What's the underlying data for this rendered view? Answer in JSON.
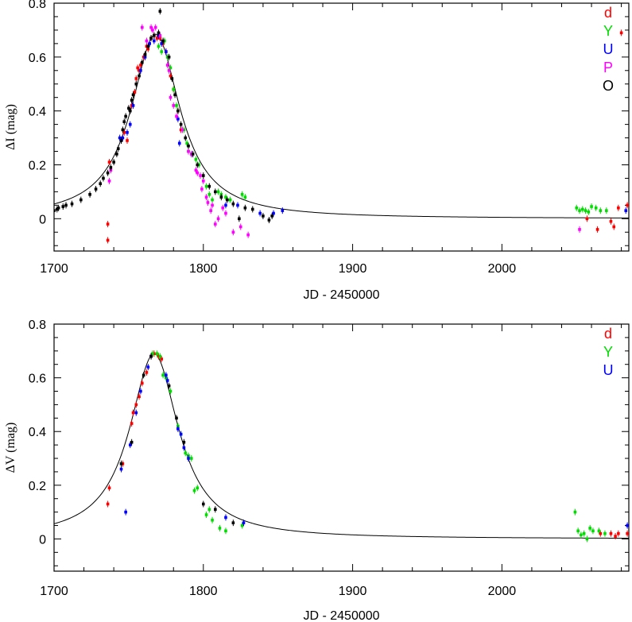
{
  "colors": {
    "d": "#ff0000",
    "Y": "#00dd00",
    "U": "#0000ff",
    "P": "#ff00ff",
    "O": "#000000"
  },
  "chart_data": [
    {
      "type": "scatter",
      "xlabel": "JD - 2450000",
      "ylabel": "ΔI (mag)",
      "xlim": [
        1700,
        2085
      ],
      "ylim": [
        -0.12,
        0.8
      ],
      "xticks": [
        "1700",
        "1800",
        "1900",
        "2000"
      ],
      "yticks": [
        "0",
        "0.2",
        "0.4",
        "0.6",
        "0.8"
      ],
      "legend_placement": "top-right",
      "legend": [
        "d",
        "Y",
        "U",
        "P",
        "O"
      ],
      "model": {
        "t0": 1768,
        "amp": 0.685,
        "tau": 20
      },
      "series": [
        {
          "name": "d",
          "points": [
            [
              1736,
              -0.02
            ],
            [
              1736,
              -0.08
            ],
            [
              1737,
              0.21
            ],
            [
              1747,
              0.32
            ],
            [
              1749,
              0.29
            ],
            [
              1752,
              0.42
            ],
            [
              1754,
              0.47
            ],
            [
              1755,
              0.52
            ],
            [
              1756,
              0.56
            ],
            [
              1757,
              0.55
            ],
            [
              1758,
              0.57
            ],
            [
              1760,
              0.6
            ],
            [
              1762,
              0.64
            ],
            [
              1763,
              0.63
            ],
            [
              1765,
              0.67
            ],
            [
              1767,
              0.68
            ],
            [
              1769,
              0.67
            ],
            [
              1771,
              0.67
            ],
            [
              1773,
              0.65
            ],
            [
              1775,
              0.62
            ],
            [
              1778,
              0.53
            ],
            [
              1780,
              0.48
            ],
            [
              1783,
              0.4
            ],
            [
              1785,
              0.33
            ],
            [
              2057,
              0.0
            ],
            [
              2064,
              -0.04
            ],
            [
              2073,
              -0.01
            ],
            [
              2075,
              -0.03
            ],
            [
              2078,
              0.04
            ],
            [
              2080,
              0.69
            ],
            [
              2084,
              0.05
            ]
          ]
        },
        {
          "name": "Y",
          "points": [
            [
              1770,
              0.64
            ],
            [
              1772,
              0.62
            ],
            [
              1774,
              0.66
            ],
            [
              1776,
              0.6
            ],
            [
              1778,
              0.56
            ],
            [
              1780,
              0.48
            ],
            [
              1782,
              0.42
            ],
            [
              1787,
              0.33
            ],
            [
              1789,
              0.28
            ],
            [
              1790,
              0.25
            ],
            [
              1795,
              0.22
            ],
            [
              1797,
              0.2
            ],
            [
              1802,
              0.12
            ],
            [
              1804,
              0.09
            ],
            [
              1806,
              0.07
            ],
            [
              1810,
              0.1
            ],
            [
              1812,
              0.09
            ],
            [
              1815,
              0.08
            ],
            [
              1818,
              0.07
            ],
            [
              1826,
              0.09
            ],
            [
              1828,
              0.08
            ],
            [
              2050,
              0.04
            ],
            [
              2052,
              0.03
            ],
            [
              2054,
              0.035
            ],
            [
              2056,
              0.03
            ],
            [
              2058,
              0.025
            ],
            [
              2060,
              0.045
            ],
            [
              2063,
              0.04
            ],
            [
              2066,
              0.03
            ],
            [
              2070,
              0.03
            ]
          ]
        },
        {
          "name": "U",
          "points": [
            [
              1744,
              0.3
            ],
            [
              1745,
              0.29
            ],
            [
              1746,
              0.3
            ],
            [
              1749,
              0.32
            ],
            [
              1751,
              0.35
            ],
            [
              1753,
              0.42
            ],
            [
              1758,
              0.55
            ],
            [
              1761,
              0.6
            ],
            [
              1764,
              0.65
            ],
            [
              1767,
              0.66
            ],
            [
              1770,
              0.68
            ],
            [
              1772,
              0.65
            ],
            [
              1775,
              0.62
            ],
            [
              1783,
              0.37
            ],
            [
              1784,
              0.28
            ],
            [
              1792,
              0.24
            ],
            [
              1815,
              0.05
            ],
            [
              1823,
              0.05
            ],
            [
              1838,
              0.02
            ],
            [
              1847,
              0.02
            ],
            [
              1853,
              0.03
            ],
            [
              2083,
              0.03
            ]
          ]
        },
        {
          "name": "P",
          "points": [
            [
              1737,
              0.14
            ],
            [
              1738,
              0.18
            ],
            [
              1759,
              0.71
            ],
            [
              1762,
              0.66
            ],
            [
              1765,
              0.71
            ],
            [
              1766,
              0.7
            ],
            [
              1768,
              0.71
            ],
            [
              1771,
              0.68
            ],
            [
              1776,
              0.57
            ],
            [
              1777,
              0.55
            ],
            [
              1778,
              0.45
            ],
            [
              1780,
              0.42
            ],
            [
              1782,
              0.38
            ],
            [
              1786,
              0.33
            ],
            [
              1790,
              0.25
            ],
            [
              1792,
              0.24
            ],
            [
              1795,
              0.18
            ],
            [
              1796,
              0.17
            ],
            [
              1798,
              0.16
            ],
            [
              1799,
              0.11
            ],
            [
              1800,
              0.14
            ],
            [
              1802,
              0.08
            ],
            [
              1803,
              0.06
            ],
            [
              1805,
              0.03
            ],
            [
              1806,
              0.05
            ],
            [
              1808,
              -0.02
            ],
            [
              1810,
              0.0
            ],
            [
              1813,
              0.04
            ],
            [
              1815,
              0.02
            ],
            [
              1820,
              -0.05
            ],
            [
              1825,
              -0.03
            ],
            [
              1830,
              -0.06
            ],
            [
              2052,
              -0.04
            ]
          ]
        },
        {
          "name": "O",
          "points": [
            [
              1700,
              0.03
            ],
            [
              1702,
              0.035
            ],
            [
              1703,
              0.04
            ],
            [
              1706,
              0.045
            ],
            [
              1708,
              0.05
            ],
            [
              1712,
              0.055
            ],
            [
              1718,
              0.07
            ],
            [
              1724,
              0.09
            ],
            [
              1728,
              0.11
            ],
            [
              1731,
              0.13
            ],
            [
              1733,
              0.15
            ],
            [
              1736,
              0.17
            ],
            [
              1738,
              0.19
            ],
            [
              1740,
              0.21
            ],
            [
              1742,
              0.24
            ],
            [
              1743,
              0.26
            ],
            [
              1745,
              0.29
            ],
            [
              1746,
              0.33
            ],
            [
              1747,
              0.36
            ],
            [
              1748,
              0.38
            ],
            [
              1750,
              0.41
            ],
            [
              1751,
              0.4
            ],
            [
              1752,
              0.44
            ],
            [
              1753,
              0.46
            ],
            [
              1755,
              0.5
            ],
            [
              1757,
              0.53
            ],
            [
              1759,
              0.58
            ],
            [
              1761,
              0.61
            ],
            [
              1763,
              0.64
            ],
            [
              1765,
              0.67
            ],
            [
              1767,
              0.68
            ],
            [
              1770,
              0.69
            ],
            [
              1771,
              0.77
            ],
            [
              1773,
              0.66
            ],
            [
              1777,
              0.6
            ],
            [
              1779,
              0.52
            ],
            [
              1781,
              0.46
            ],
            [
              1783,
              0.4
            ],
            [
              1785,
              0.35
            ],
            [
              1788,
              0.3
            ],
            [
              1790,
              0.27
            ],
            [
              1793,
              0.24
            ],
            [
              1796,
              0.2
            ],
            [
              1800,
              0.16
            ],
            [
              1804,
              0.12
            ],
            [
              1808,
              0.1
            ],
            [
              1812,
              0.08
            ],
            [
              1816,
              0.07
            ],
            [
              1820,
              0.055
            ],
            [
              1824,
              0.0
            ],
            [
              1828,
              0.04
            ],
            [
              1833,
              0.035
            ],
            [
              1840,
              0.01
            ],
            [
              1844,
              -0.005
            ],
            [
              1846,
              0.01
            ]
          ]
        }
      ]
    },
    {
      "type": "scatter",
      "xlabel": "JD - 2450000",
      "ylabel": "ΔV (mag)",
      "xlim": [
        1700,
        2085
      ],
      "ylim": [
        -0.12,
        0.8
      ],
      "xticks": [
        "1700",
        "1800",
        "1900",
        "2000"
      ],
      "yticks": [
        "0",
        "0.2",
        "0.4",
        "0.6",
        "0.8"
      ],
      "legend_placement": "top-right",
      "legend": [
        "d",
        "Y",
        "U"
      ],
      "model": {
        "t0": 1767,
        "amp": 0.69,
        "tau": 20
      },
      "series": [
        {
          "name": "d",
          "points": [
            [
              1736,
              0.13
            ],
            [
              1737,
              0.19
            ],
            [
              1746,
              0.28
            ],
            [
              1752,
              0.43
            ],
            [
              1753,
              0.47
            ],
            [
              1755,
              0.5
            ],
            [
              1757,
              0.53
            ],
            [
              1759,
              0.58
            ],
            [
              1762,
              0.62
            ],
            [
              1765,
              0.68
            ],
            [
              1767,
              0.69
            ],
            [
              1770,
              0.68
            ],
            [
              1772,
              0.67
            ],
            [
              2066,
              0.02
            ],
            [
              2073,
              0.02
            ],
            [
              2076,
              0.01
            ],
            [
              2078,
              0.02
            ],
            [
              2084,
              0.02
            ]
          ]
        },
        {
          "name": "Y",
          "points": [
            [
              1766,
              0.69
            ],
            [
              1769,
              0.69
            ],
            [
              1771,
              0.68
            ],
            [
              1773,
              0.61
            ],
            [
              1775,
              0.6
            ],
            [
              1778,
              0.55
            ],
            [
              1783,
              0.42
            ],
            [
              1785,
              0.39
            ],
            [
              1788,
              0.32
            ],
            [
              1790,
              0.31
            ],
            [
              1792,
              0.3
            ],
            [
              1794,
              0.18
            ],
            [
              1796,
              0.19
            ],
            [
              1802,
              0.09
            ],
            [
              1804,
              0.11
            ],
            [
              1806,
              0.07
            ],
            [
              1811,
              0.04
            ],
            [
              1815,
              0.03
            ],
            [
              1826,
              0.05
            ],
            [
              2049,
              0.1
            ],
            [
              2051,
              0.03
            ],
            [
              2053,
              0.015
            ],
            [
              2055,
              0.02
            ],
            [
              2057,
              0.0
            ],
            [
              2059,
              0.04
            ],
            [
              2061,
              0.03
            ],
            [
              2065,
              0.03
            ],
            [
              2069,
              0.02
            ]
          ]
        },
        {
          "name": "U",
          "points": [
            [
              1745,
              0.26
            ],
            [
              1748,
              0.1
            ],
            [
              1751,
              0.35
            ],
            [
              1755,
              0.47
            ],
            [
              1758,
              0.55
            ],
            [
              1763,
              0.64
            ],
            [
              1765,
              0.68
            ],
            [
              1775,
              0.61
            ],
            [
              1776,
              0.59
            ],
            [
              1783,
              0.41
            ],
            [
              1785,
              0.39
            ],
            [
              1787,
              0.34
            ],
            [
              1790,
              0.3
            ],
            [
              1815,
              0.08
            ],
            [
              1827,
              0.06
            ],
            [
              2084,
              0.05
            ]
          ]
        },
        {
          "name": "O",
          "points": [
            [
              1745,
              0.28
            ],
            [
              1752,
              0.36
            ],
            [
              1760,
              0.61
            ],
            [
              1765,
              0.68
            ],
            [
              1777,
              0.57
            ],
            [
              1782,
              0.45
            ],
            [
              1787,
              0.36
            ],
            [
              1800,
              0.13
            ],
            [
              1808,
              0.11
            ],
            [
              1820,
              0.06
            ]
          ]
        }
      ]
    }
  ]
}
